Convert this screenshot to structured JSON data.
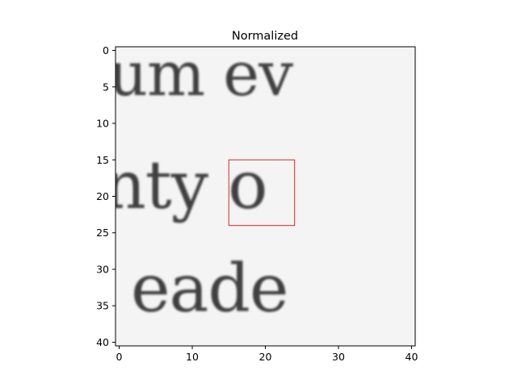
{
  "chart_data": {
    "type": "heatmap",
    "title": "Normalized",
    "xlabel": "",
    "ylabel": "",
    "x_ticks": [
      "0",
      "10",
      "20",
      "30",
      "40"
    ],
    "y_ticks": [
      "0",
      "5",
      "10",
      "15",
      "20",
      "25",
      "30",
      "35",
      "40"
    ],
    "xlim": [
      -0.5,
      40.5
    ],
    "ylim": [
      40.5,
      -0.5
    ],
    "grid": false,
    "colormap": "gray",
    "image_size": [
      41,
      41
    ],
    "image_text_rows": [
      {
        "text": "um ev",
        "row_range": [
          0,
          6
        ]
      },
      {
        "text": "nty o",
        "row_range": [
          15,
          23
        ]
      },
      {
        "text": "eade",
        "row_range": [
          29,
          37
        ]
      }
    ],
    "highlight_box": {
      "x0": 15,
      "x1": 24,
      "y0": 15,
      "y1": 24,
      "color": "#d62728"
    },
    "colors": {
      "background": "#ffffff",
      "image_bg": "#f4f4f4",
      "ink": "#1c1c1c",
      "box": "#d62728"
    }
  }
}
